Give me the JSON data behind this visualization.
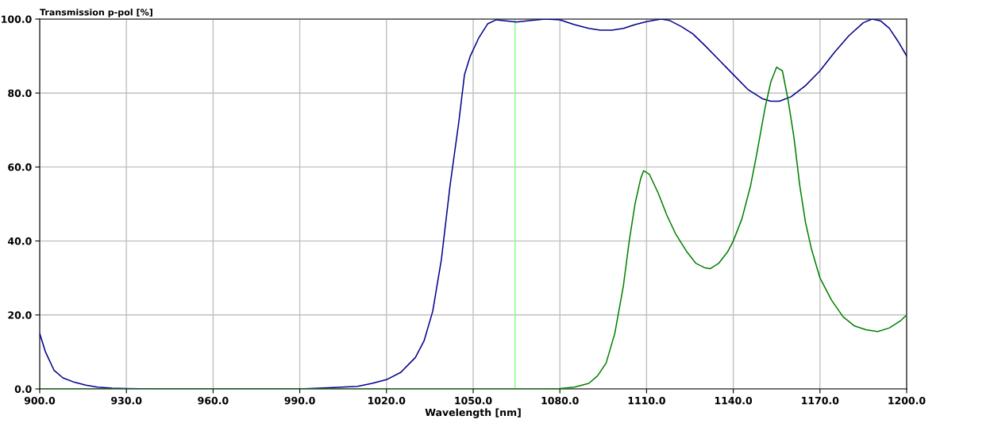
{
  "chart_data": {
    "type": "line",
    "xlabel": "Wavelength [nm]",
    "ylabel": "Transmission p-pol [%]",
    "xlim": [
      900,
      1200
    ],
    "ylim": [
      0,
      100
    ],
    "xticks": [
      {
        "value": 900,
        "label": "900.0"
      },
      {
        "value": 930,
        "label": "930.0"
      },
      {
        "value": 960,
        "label": "960.0"
      },
      {
        "value": 990,
        "label": "990.0"
      },
      {
        "value": 1020,
        "label": "1020.0"
      },
      {
        "value": 1050,
        "label": "1050.0"
      },
      {
        "value": 1080,
        "label": "1080.0"
      },
      {
        "value": 1110,
        "label": "1110.0"
      },
      {
        "value": 1140,
        "label": "1140.0"
      },
      {
        "value": 1170,
        "label": "1170.0"
      },
      {
        "value": 1200,
        "label": "1200.0"
      }
    ],
    "yticks": [
      {
        "value": 0,
        "label": "0.0"
      },
      {
        "value": 20,
        "label": "20.0"
      },
      {
        "value": 40,
        "label": "40.0"
      },
      {
        "value": 60,
        "label": "60.0"
      },
      {
        "value": 80,
        "label": "80.0"
      },
      {
        "value": 100,
        "label": "100.0"
      }
    ],
    "grid": true,
    "legend": false,
    "marker": "none",
    "line_style": "solid",
    "ref_lines": [
      {
        "axis": "x",
        "value": 1064.5,
        "label": null,
        "color": "#80ff80"
      }
    ],
    "series": [
      {
        "color": "#00008b",
        "x": [
          900,
          902,
          905,
          908,
          912,
          916,
          920,
          925,
          930,
          940,
          990,
          1000,
          1010,
          1015,
          1020,
          1025,
          1030,
          1033,
          1036,
          1039,
          1042,
          1045,
          1047,
          1049,
          1052,
          1055,
          1058,
          1065,
          1070,
          1075,
          1080,
          1085,
          1090,
          1094,
          1098,
          1102,
          1106,
          1110,
          1115,
          1118,
          1122,
          1126,
          1130,
          1135,
          1140,
          1145,
          1150,
          1153,
          1156,
          1160,
          1165,
          1170,
          1175,
          1180,
          1185,
          1188,
          1191,
          1194,
          1197,
          1200
        ],
        "values": [
          15,
          10,
          5,
          3,
          1.8,
          1,
          0.5,
          0.2,
          0.1,
          0,
          0,
          0.3,
          0.7,
          1.5,
          2.5,
          4.5,
          8.5,
          13,
          21,
          35,
          55,
          72,
          85,
          90,
          95,
          98.7,
          99.8,
          99.2,
          99.6,
          100,
          99.8,
          98.5,
          97.5,
          97,
          97,
          97.5,
          98.5,
          99.3,
          100,
          99.6,
          98,
          96,
          93,
          89,
          85,
          81,
          78.5,
          77.8,
          77.8,
          79,
          82,
          86,
          91,
          95.5,
          99,
          100,
          99.5,
          97.5,
          94,
          90
        ]
      },
      {
        "color": "#008000",
        "x": [
          900,
          1075,
          1080,
          1085,
          1090,
          1093,
          1096,
          1099,
          1102,
          1104,
          1106,
          1108,
          1109,
          1111,
          1114,
          1117,
          1120,
          1124,
          1127,
          1130,
          1132,
          1135,
          1138,
          1140,
          1143,
          1146,
          1148,
          1151,
          1153,
          1155,
          1157,
          1159,
          1161,
          1163,
          1165,
          1167,
          1170,
          1174,
          1178,
          1182,
          1186,
          1190,
          1194,
          1198,
          1200
        ],
        "values": [
          0,
          0,
          0.1,
          0.5,
          1.5,
          3.5,
          7,
          15,
          28,
          40,
          50,
          57,
          59,
          58,
          53,
          47,
          42,
          37,
          34,
          32.8,
          32.5,
          34,
          37,
          40,
          46,
          55,
          63,
          76,
          83,
          87,
          86,
          78,
          68,
          55,
          45,
          38,
          30,
          24,
          19.5,
          17,
          16,
          15.5,
          16.5,
          18.5,
          20
        ]
      }
    ]
  }
}
